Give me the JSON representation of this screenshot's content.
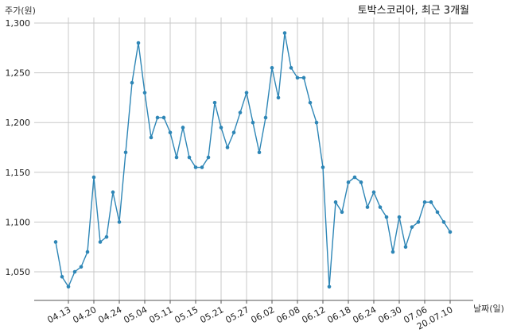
{
  "chart_data": {
    "type": "line",
    "title": "토박스코리아, 최근 3개월",
    "ylabel": "주가(원)",
    "xlabel": "날짜(일)",
    "ylim": [
      1020,
      1300
    ],
    "yticks": [
      1050,
      1100,
      1150,
      1200,
      1250,
      1300
    ],
    "ytick_labels": [
      "1,050",
      "1,100",
      "1,150",
      "1,200",
      "1,250",
      "1,300"
    ],
    "xtick_labels": [
      "04.13",
      "04.20",
      "04.24",
      "05.04",
      "05.11",
      "05.15",
      "05.21",
      "05.27",
      "06.02",
      "06.08",
      "06.12",
      "06.18",
      "06.24",
      "06.30",
      "07.06",
      "20.07.10"
    ],
    "xtick_index": [
      2,
      6,
      10,
      14,
      18,
      22,
      26,
      30,
      34,
      38,
      42,
      46,
      50,
      54,
      58,
      62
    ],
    "grid": true,
    "line_color": "#2e86b6",
    "series": [
      {
        "values": [
          1080,
          1045,
          1035,
          1050,
          1055,
          1070,
          1145,
          1080,
          1085,
          1130,
          1100,
          1170,
          1240,
          1280,
          1230,
          1185,
          1205,
          1205,
          1190,
          1165,
          1195,
          1165,
          1155,
          1155,
          1165,
          1220,
          1195,
          1175,
          1190,
          1210,
          1230,
          1200,
          1170,
          1205,
          1255,
          1225,
          1290,
          1255,
          1245,
          1245,
          1220,
          1200,
          1155,
          1035,
          1120,
          1110,
          1140,
          1145,
          1140,
          1115,
          1130,
          1115,
          1105,
          1070,
          1105,
          1075,
          1095,
          1100,
          1120,
          1120,
          1110,
          1100,
          1090
        ]
      }
    ]
  }
}
